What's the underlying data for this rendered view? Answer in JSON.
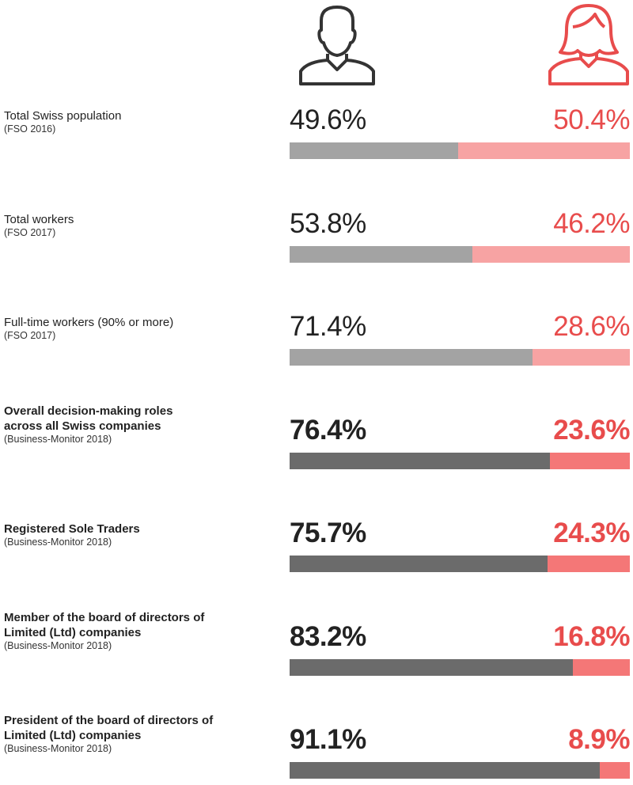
{
  "chart_data": {
    "type": "bar",
    "stacked": true,
    "orientation": "horizontal",
    "xlim": [
      0,
      100
    ],
    "categories": [
      "Total Swiss population",
      "Total workers",
      "Full-time workers (90% or more)",
      "Overall decision-making roles\nacross all Swiss companies",
      "Registered Sole Traders",
      "Member of the board of directors of\nLimited (Ltd) companies",
      "President of the board of directors of\nLimited (Ltd) companies"
    ],
    "sources": [
      "(FSO 2016)",
      "(FSO 2017)",
      "(FSO 2017)",
      "(Business-Monitor 2018)",
      "(Business-Monitor 2018)",
      "(Business-Monitor 2018)",
      "(Business-Monitor 2018)"
    ],
    "highlight": [
      false,
      false,
      false,
      true,
      true,
      true,
      true
    ],
    "series": [
      {
        "values": [
          49.6,
          53.8,
          71.4,
          76.4,
          75.7,
          83.2,
          91.1
        ],
        "value_labels": [
          "49.6%",
          "53.8%",
          "71.4%",
          "76.4%",
          "75.7%",
          "83.2%",
          "91.1%"
        ],
        "label_color": "#222222",
        "colors": [
          "#a3a3a3",
          "#a3a3a3",
          "#a3a3a3",
          "#6b6b6b",
          "#6b6b6b",
          "#6b6b6b",
          "#6b6b6b"
        ]
      },
      {
        "values": [
          50.4,
          46.2,
          28.6,
          23.6,
          24.3,
          16.8,
          8.9
        ],
        "value_labels": [
          "50.4%",
          "46.2%",
          "28.6%",
          "23.6%",
          "24.3%",
          "16.8%",
          "8.9%"
        ],
        "label_color": "#e84c4c",
        "colors": [
          "#f7a3a3",
          "#f7a3a3",
          "#f7a3a3",
          "#f47777",
          "#f47777",
          "#f47777",
          "#f47777"
        ]
      }
    ]
  }
}
